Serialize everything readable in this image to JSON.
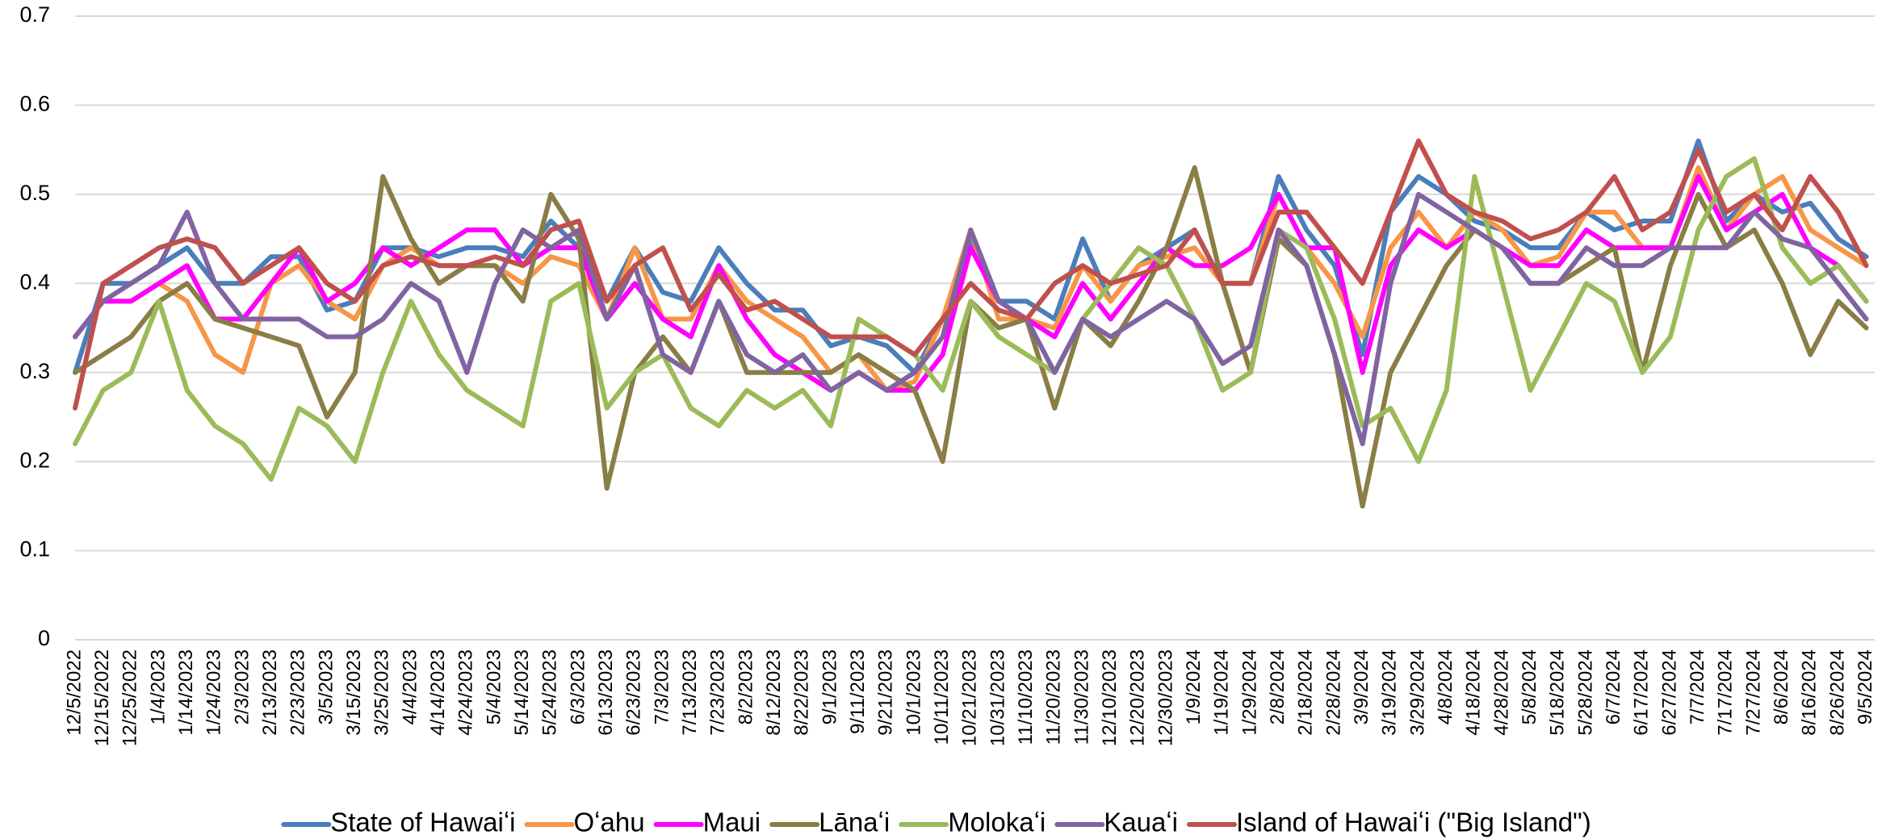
{
  "chart_data": {
    "type": "line",
    "categories": [
      "12/5/2022",
      "12/15/2022",
      "12/25/2022",
      "1/4/2023",
      "1/14/2023",
      "1/24/2023",
      "2/3/2023",
      "2/13/2023",
      "2/23/2023",
      "3/5/2023",
      "3/15/2023",
      "3/25/2023",
      "4/4/2023",
      "4/14/2023",
      "4/24/2023",
      "5/4/2023",
      "5/14/2023",
      "5/24/2023",
      "6/3/2023",
      "6/13/2023",
      "6/23/2023",
      "7/3/2023",
      "7/13/2023",
      "7/23/2023",
      "8/2/2023",
      "8/12/2023",
      "8/22/2023",
      "9/1/2023",
      "9/11/2023",
      "9/21/2023",
      "10/1/2023",
      "10/11/2023",
      "10/21/2023",
      "10/31/2023",
      "11/10/2023",
      "11/20/2023",
      "11/30/2023",
      "12/10/2023",
      "12/20/2023",
      "12/30/2023",
      "1/9/2024",
      "1/19/2024",
      "1/29/2024",
      "2/8/2024",
      "2/18/2024",
      "2/28/2024",
      "3/9/2024",
      "3/19/2024",
      "3/29/2024",
      "4/8/2024",
      "4/18/2024",
      "4/28/2024",
      "5/8/2024",
      "5/18/2024",
      "5/28/2024",
      "6/7/2024",
      "6/17/2024",
      "6/27/2024",
      "7/7/2024",
      "7/17/2024",
      "7/27/2024",
      "8/6/2024",
      "8/16/2024",
      "8/26/2024",
      "9/5/2024"
    ],
    "series": [
      {
        "name": "State of Hawaiʻi",
        "color": "#4a7ebb",
        "values": [
          0.3,
          0.4,
          0.4,
          0.42,
          0.44,
          0.4,
          0.4,
          0.43,
          0.43,
          0.37,
          0.38,
          0.44,
          0.44,
          0.43,
          0.44,
          0.44,
          0.43,
          0.47,
          0.44,
          0.38,
          0.44,
          0.39,
          0.38,
          0.44,
          0.4,
          0.37,
          0.37,
          0.33,
          0.34,
          0.33,
          0.3,
          0.36,
          0.45,
          0.38,
          0.38,
          0.36,
          0.45,
          0.38,
          0.42,
          0.44,
          0.46,
          0.4,
          0.4,
          0.52,
          0.46,
          0.42,
          0.32,
          0.48,
          0.52,
          0.5,
          0.47,
          0.46,
          0.44,
          0.44,
          0.48,
          0.46,
          0.47,
          0.47,
          0.56,
          0.47,
          0.5,
          0.48,
          0.49,
          0.45,
          0.43
        ]
      },
      {
        "name": "Oʻahu",
        "color": "#f79646",
        "values": [
          0.34,
          0.38,
          0.38,
          0.4,
          0.38,
          0.32,
          0.3,
          0.4,
          0.42,
          0.38,
          0.36,
          0.42,
          0.44,
          0.42,
          0.42,
          0.42,
          0.4,
          0.43,
          0.42,
          0.36,
          0.44,
          0.36,
          0.36,
          0.42,
          0.38,
          0.36,
          0.34,
          0.3,
          0.32,
          0.28,
          0.29,
          0.36,
          0.46,
          0.36,
          0.36,
          0.35,
          0.42,
          0.38,
          0.42,
          0.43,
          0.44,
          0.4,
          0.4,
          0.5,
          0.44,
          0.4,
          0.34,
          0.44,
          0.48,
          0.44,
          0.48,
          0.46,
          0.42,
          0.43,
          0.48,
          0.48,
          0.44,
          0.44,
          0.53,
          0.46,
          0.5,
          0.52,
          0.46,
          0.44,
          0.42
        ]
      },
      {
        "name": "Maui",
        "color": "#ff00ff",
        "values": [
          0.34,
          0.38,
          0.38,
          0.4,
          0.42,
          0.36,
          0.36,
          0.4,
          0.44,
          0.38,
          0.4,
          0.44,
          0.42,
          0.44,
          0.46,
          0.46,
          0.42,
          0.44,
          0.44,
          0.36,
          0.4,
          0.36,
          0.34,
          0.42,
          0.36,
          0.32,
          0.3,
          0.28,
          0.3,
          0.28,
          0.28,
          0.32,
          0.44,
          0.38,
          0.36,
          0.34,
          0.4,
          0.36,
          0.4,
          0.44,
          0.42,
          0.42,
          0.44,
          0.5,
          0.44,
          0.44,
          0.3,
          0.42,
          0.46,
          0.44,
          0.46,
          0.44,
          0.42,
          0.42,
          0.46,
          0.44,
          0.44,
          0.44,
          0.52,
          0.46,
          0.48,
          0.5,
          0.44,
          0.42,
          0.38
        ]
      },
      {
        "name": "Lānaʻi",
        "color": "#8a7d45",
        "values": [
          0.3,
          0.32,
          0.34,
          0.38,
          0.4,
          0.36,
          0.35,
          0.34,
          0.33,
          0.25,
          0.3,
          0.52,
          0.45,
          0.4,
          0.42,
          0.42,
          0.38,
          0.5,
          0.45,
          0.17,
          0.3,
          0.34,
          0.3,
          0.38,
          0.3,
          0.3,
          0.3,
          0.3,
          0.32,
          0.3,
          0.28,
          0.2,
          0.38,
          0.35,
          0.36,
          0.26,
          0.36,
          0.33,
          0.38,
          0.44,
          0.53,
          0.4,
          0.3,
          0.45,
          0.42,
          0.32,
          0.15,
          0.3,
          0.36,
          0.42,
          0.46,
          0.44,
          0.4,
          0.4,
          0.42,
          0.44,
          0.3,
          0.42,
          0.5,
          0.44,
          0.46,
          0.4,
          0.32,
          0.38,
          0.35
        ]
      },
      {
        "name": "Molokaʻi",
        "color": "#9bbb59",
        "values": [
          0.22,
          0.28,
          0.3,
          0.38,
          0.28,
          0.24,
          0.22,
          0.18,
          0.26,
          0.24,
          0.2,
          0.3,
          0.38,
          0.32,
          0.28,
          0.26,
          0.24,
          0.38,
          0.4,
          0.26,
          0.3,
          0.32,
          0.26,
          0.24,
          0.28,
          0.26,
          0.28,
          0.24,
          0.36,
          0.34,
          0.32,
          0.28,
          0.38,
          0.34,
          0.32,
          0.3,
          0.36,
          0.4,
          0.44,
          0.42,
          0.36,
          0.28,
          0.3,
          0.46,
          0.44,
          0.36,
          0.24,
          0.26,
          0.2,
          0.28,
          0.52,
          0.4,
          0.28,
          0.34,
          0.4,
          0.38,
          0.3,
          0.34,
          0.46,
          0.52,
          0.54,
          0.44,
          0.4,
          0.42,
          0.38
        ]
      },
      {
        "name": "Kauaʻi",
        "color": "#8064a2",
        "values": [
          0.34,
          0.38,
          0.4,
          0.42,
          0.48,
          0.4,
          0.36,
          0.36,
          0.36,
          0.34,
          0.34,
          0.36,
          0.4,
          0.38,
          0.3,
          0.4,
          0.46,
          0.44,
          0.46,
          0.36,
          0.42,
          0.32,
          0.3,
          0.38,
          0.32,
          0.3,
          0.32,
          0.28,
          0.3,
          0.28,
          0.3,
          0.34,
          0.46,
          0.38,
          0.36,
          0.3,
          0.36,
          0.34,
          0.36,
          0.38,
          0.36,
          0.31,
          0.33,
          0.46,
          0.42,
          0.32,
          0.22,
          0.4,
          0.5,
          0.48,
          0.46,
          0.44,
          0.4,
          0.4,
          0.44,
          0.42,
          0.42,
          0.44,
          0.44,
          0.44,
          0.48,
          0.45,
          0.44,
          0.4,
          0.36
        ]
      },
      {
        "name": "Island of Hawaiʻi (\"Big Island\")",
        "color": "#c0504d",
        "values": [
          0.26,
          0.4,
          0.42,
          0.44,
          0.45,
          0.44,
          0.4,
          0.42,
          0.44,
          0.4,
          0.38,
          0.42,
          0.43,
          0.42,
          0.42,
          0.43,
          0.42,
          0.46,
          0.47,
          0.38,
          0.42,
          0.44,
          0.37,
          0.41,
          0.37,
          0.38,
          0.36,
          0.34,
          0.34,
          0.34,
          0.32,
          0.36,
          0.4,
          0.37,
          0.36,
          0.4,
          0.42,
          0.4,
          0.41,
          0.42,
          0.46,
          0.4,
          0.4,
          0.48,
          0.48,
          0.44,
          0.4,
          0.48,
          0.56,
          0.5,
          0.48,
          0.47,
          0.45,
          0.46,
          0.48,
          0.52,
          0.46,
          0.48,
          0.55,
          0.48,
          0.5,
          0.46,
          0.52,
          0.48,
          0.42
        ]
      }
    ],
    "ylim": [
      0,
      0.7
    ],
    "yticks": [
      0,
      0.1,
      0.2,
      0.3,
      0.4,
      0.5,
      0.6,
      0.7
    ],
    "grid": true,
    "legend": "bottom"
  }
}
